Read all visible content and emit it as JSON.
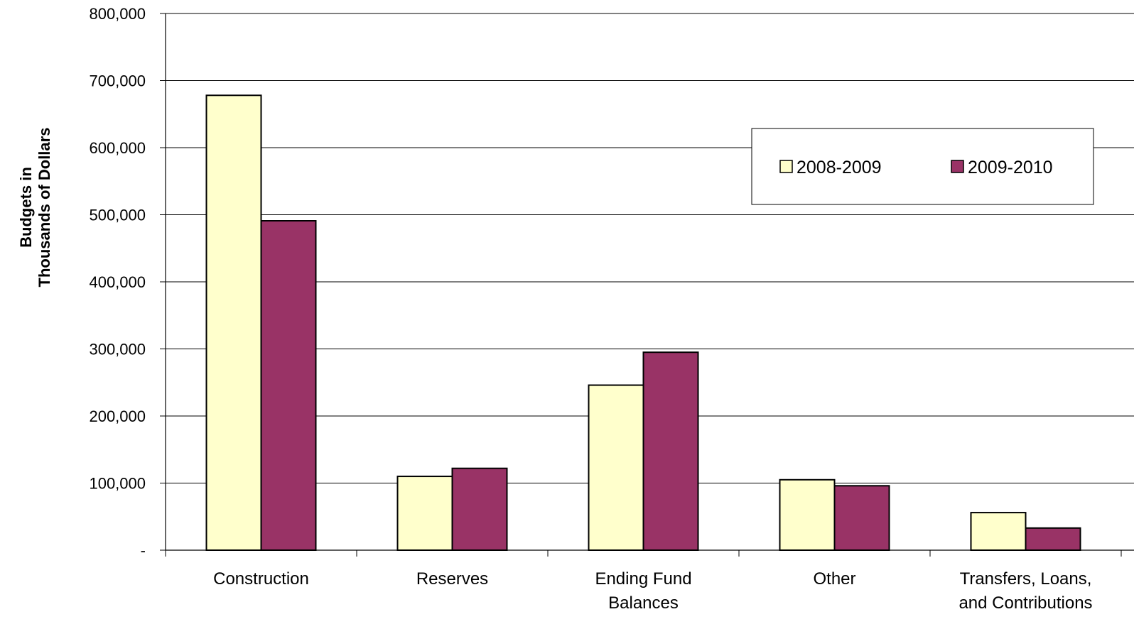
{
  "chart_data": {
    "type": "bar",
    "title": "",
    "xlabel": "",
    "ylabel_lines": [
      "Budgets in",
      "Thousands of Dollars"
    ],
    "ylim": [
      0,
      800000
    ],
    "y_ticks": [
      0,
      100000,
      200000,
      300000,
      400000,
      500000,
      600000,
      700000,
      800000
    ],
    "y_tick_labels": [
      "-",
      "100,000",
      "200,000",
      "300,000",
      "400,000",
      "500,000",
      "600,000",
      "700,000",
      "800,000"
    ],
    "grid": true,
    "legend_position": "top-right",
    "categories": [
      [
        "Construction"
      ],
      [
        "Reserves"
      ],
      [
        "Ending Fund",
        "Balances"
      ],
      [
        "Other"
      ],
      [
        "Transfers, Loans,",
        "and Contributions"
      ]
    ],
    "series": [
      {
        "name": "2008-2009",
        "color": "#FFFFCC",
        "values": [
          678000,
          110000,
          246000,
          105000,
          56000
        ]
      },
      {
        "name": "2009-2010",
        "color": "#993366",
        "values": [
          491000,
          122000,
          295000,
          96000,
          33000
        ]
      }
    ]
  }
}
